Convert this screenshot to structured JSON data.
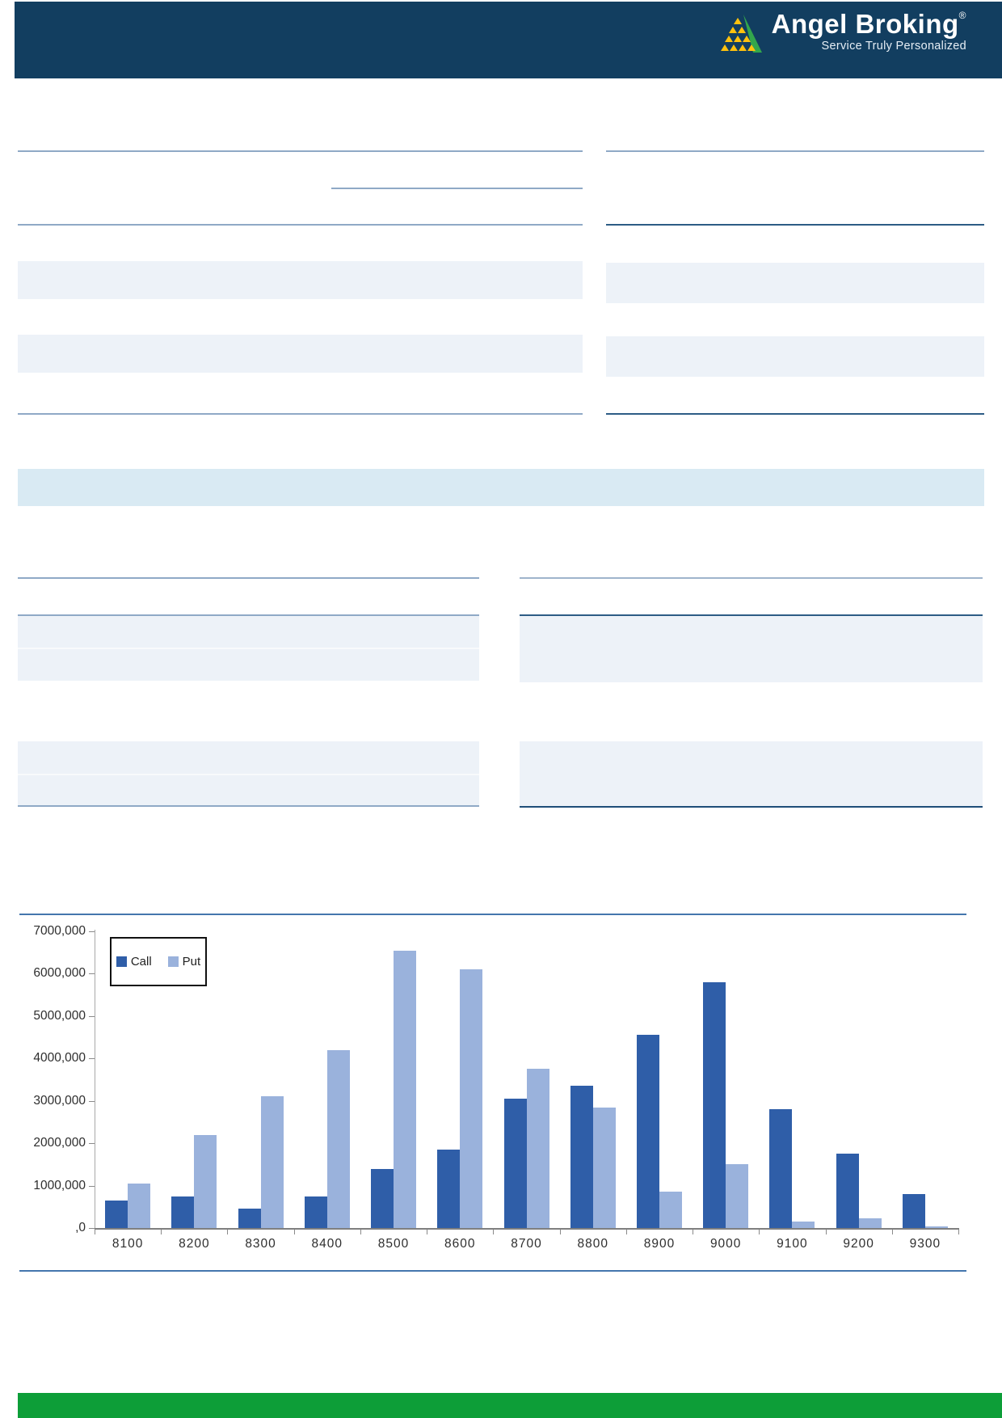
{
  "header": {
    "brand": "Angel Broking",
    "registered_mark": "®",
    "tagline": "Service Truly Personalized",
    "bar_color": "#123E60",
    "logo_yellow": "#FFC20E",
    "logo_green": "#33A64C"
  },
  "layout_colors": {
    "row_stripe": "#EDF2F8",
    "section_band": "#D9EAF3",
    "rule_light": "#8FA9C6",
    "rule_dark": "#2D5C85",
    "chart_rule": "#4476AD",
    "footer_green": "#0D9E38"
  },
  "chart_data": {
    "type": "bar",
    "title": "",
    "xlabel": "",
    "ylabel": "",
    "categories": [
      "8100",
      "8200",
      "8300",
      "8400",
      "8500",
      "8600",
      "8700",
      "8800",
      "8900",
      "9000",
      "9100",
      "9200",
      "9300"
    ],
    "series": [
      {
        "name": "Call",
        "color": "#2F5EA8",
        "values": [
          650000,
          740000,
          450000,
          740000,
          1400000,
          1850000,
          3050000,
          3350000,
          4550000,
          5800000,
          2800000,
          1750000,
          800000
        ]
      },
      {
        "name": "Put",
        "color": "#9AB2DC",
        "values": [
          1050000,
          2200000,
          3100000,
          4200000,
          6550000,
          6100000,
          3750000,
          2850000,
          850000,
          1500000,
          150000,
          220000,
          40000
        ]
      }
    ],
    "ylim": [
      0,
      7000000
    ],
    "ytick_values": [
      7000000,
      6000000,
      5000000,
      4000000,
      3000000,
      2000000,
      1000000,
      0
    ],
    "ytick_labels": [
      "7000,000",
      "6000,000",
      "5000,000",
      "4000,000",
      "3000,000",
      "2000,000",
      "1000,000",
      ",0"
    ],
    "grid": false,
    "legend_position": "top-left"
  }
}
